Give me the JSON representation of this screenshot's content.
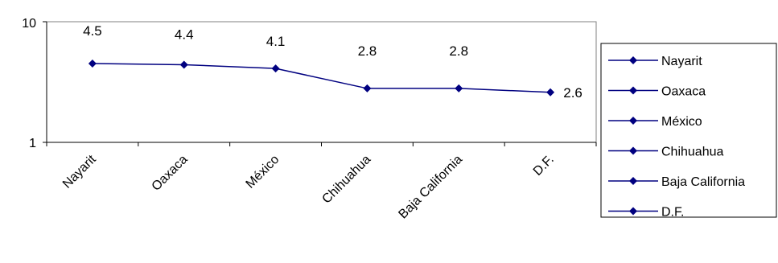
{
  "chart_data": {
    "type": "line",
    "categories": [
      "Nayarit",
      "Oaxaca",
      "México",
      "Chihuahua",
      "Baja California",
      "D.F."
    ],
    "series": [
      {
        "values": [
          4.5,
          4.4,
          4.1,
          2.8,
          2.8,
          2.6
        ]
      }
    ],
    "data_labels": [
      "4.5",
      "4.4",
      "4.1",
      "2.8",
      "2.8",
      "2.6"
    ],
    "y_ticks": [
      "10",
      "1"
    ],
    "ylim": [
      1,
      10
    ],
    "yscale": "log",
    "grid": false,
    "legend": {
      "placement": "right",
      "entries": [
        "Nayarit",
        "Oaxaca",
        "México",
        "Chihuahua",
        "Baja California",
        "D.F."
      ]
    },
    "colors": {
      "series": "#000080",
      "axis": "#000000",
      "plot_border": "#808080"
    }
  }
}
